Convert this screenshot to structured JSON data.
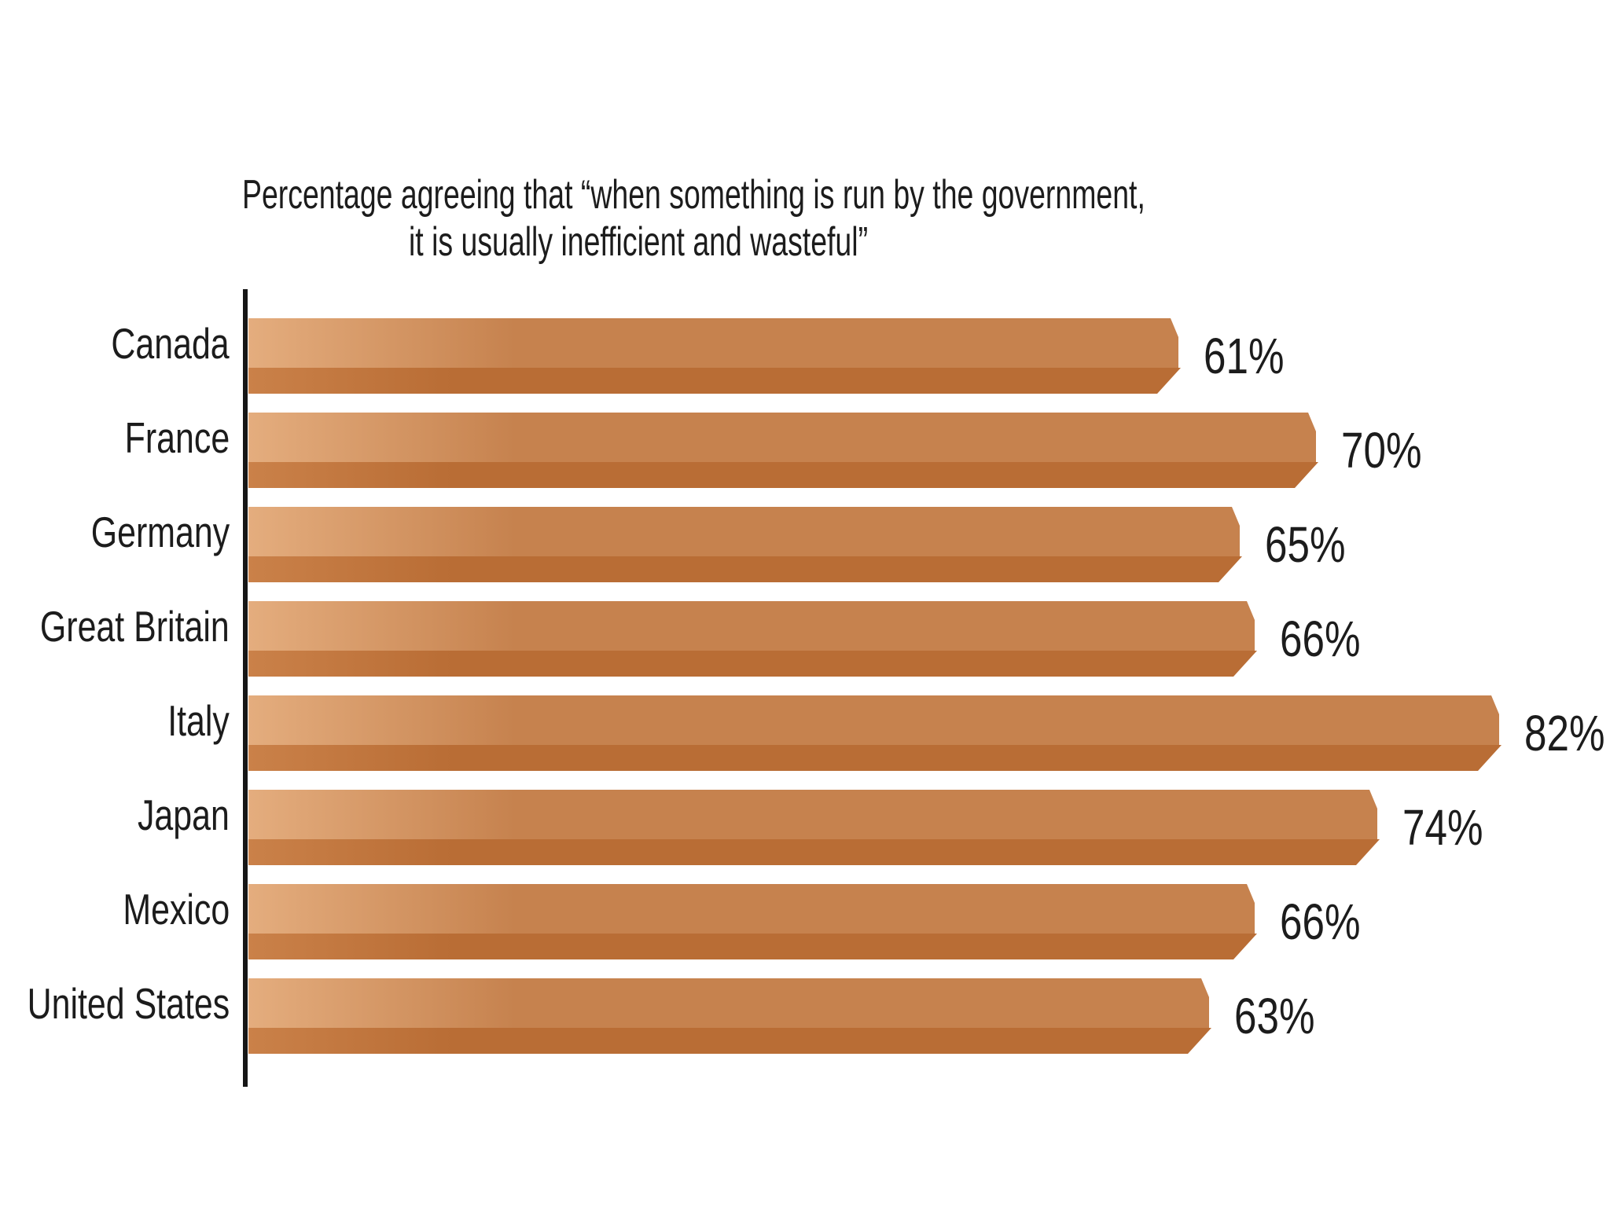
{
  "chart_data": {
    "type": "bar",
    "orientation": "horizontal",
    "title": "Percentage agreeing that “when something is run by the government, it is usually inefficient and wasteful”",
    "title_lines": [
      "Percentage agreeing that “when something is run by the government,",
      "it is usually inefficient and wasteful”"
    ],
    "categories": [
      "Canada",
      "France",
      "Germany",
      "Great Britain",
      "Italy",
      "Japan",
      "Mexico",
      "United States"
    ],
    "values": [
      61,
      70,
      65,
      66,
      82,
      74,
      66,
      63
    ],
    "value_labels": [
      "61%",
      "70%",
      "65%",
      "66%",
      "82%",
      "74%",
      "66%",
      "63%"
    ],
    "value_suffix": "%",
    "xlabel": "",
    "ylabel": "",
    "xlim": [
      0,
      100
    ],
    "grid": false,
    "axis_ticks_shown": false,
    "legend": "none",
    "bar_style": "3d-beveled",
    "colors": {
      "bar_face_light": "#e4ad7e",
      "bar_face_main": "#c6824e",
      "bar_bottom_light": "#ca8149",
      "bar_bottom_dark": "#b96d35",
      "axis_line": "#161616",
      "text": "#1c1c1c",
      "background": "#ffffff"
    }
  }
}
